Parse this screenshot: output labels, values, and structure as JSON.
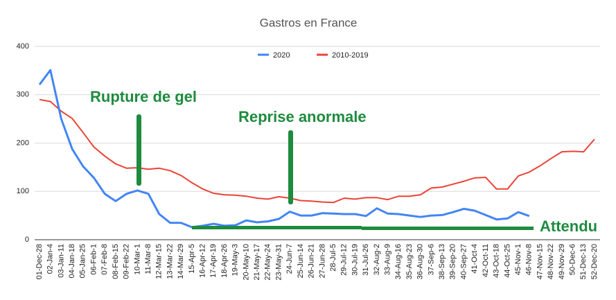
{
  "chart_data": {
    "type": "line",
    "title": "Gastros en France",
    "categories": [
      "01-Dec-28",
      "02-Jan-4",
      "03-Jan-11",
      "04-Jan-18",
      "05-Jan-25",
      "06-Feb-1",
      "07-Feb-8",
      "08-Feb-15",
      "09-Feb-22",
      "10-Mar-1",
      "11-Mar-8",
      "12-Mar-15",
      "13-Mar-22",
      "14-Mar-29",
      "15-Apr-5",
      "16-Apr-12",
      "17-Apr-19",
      "18-Apr-26",
      "19-May-3",
      "20-May-10",
      "21-May-17",
      "22-May-24",
      "23-May-31",
      "24-Jun-7",
      "25-Jun-14",
      "26-Jun-21",
      "27-Jun-28",
      "28-Jul-5",
      "29-Jul-12",
      "30-Jul-19",
      "31-Jul-26",
      "32-Aug-2",
      "33-Aug-9",
      "34-Aug-16",
      "35-Aug-23",
      "36-Aug-30",
      "37-Sep-6",
      "38-Sep-13",
      "39-Sep-20",
      "40-Sep-27",
      "41-Oct-4",
      "42-Oct-11",
      "43-Oct-18",
      "44-Oct-25",
      "45-Nov-1",
      "46-Nov-8",
      "47-Nov-15",
      "48-Nov-22",
      "49-Nov-29",
      "50-Dec-6",
      "51-Dec-13",
      "52-Dec-20"
    ],
    "series": [
      {
        "name": "2020",
        "color": "#4285f4",
        "values": [
          321,
          351,
          250,
          188,
          152,
          128,
          95,
          80,
          95,
          102,
          95,
          53,
          35,
          35,
          26,
          29,
          33,
          29,
          30,
          40,
          36,
          38,
          43,
          58,
          50,
          50,
          55,
          54,
          53,
          53,
          49,
          65,
          54,
          53,
          50,
          47,
          50,
          51,
          57,
          64,
          60,
          51,
          42,
          44,
          57,
          49,
          null,
          null,
          null,
          null,
          null,
          null
        ]
      },
      {
        "name": "2010-2019",
        "color": "#ea4335",
        "values": [
          290,
          286,
          266,
          251,
          222,
          192,
          173,
          157,
          148,
          149,
          146,
          148,
          143,
          133,
          118,
          105,
          96,
          93,
          92,
          90,
          86,
          84,
          89,
          86,
          81,
          80,
          78,
          77,
          86,
          84,
          87,
          87,
          83,
          90,
          90,
          93,
          107,
          109,
          115,
          121,
          128,
          129,
          105,
          105,
          132,
          140,
          153,
          168,
          182,
          183,
          182,
          208
        ]
      }
    ],
    "ylim": [
      0,
      400
    ],
    "yticks": [
      0,
      100,
      200,
      300,
      400
    ],
    "grid": true,
    "legend": "top",
    "annotations": [
      "Rupture de gel",
      "Reprise anormale",
      "Attendu"
    ]
  }
}
